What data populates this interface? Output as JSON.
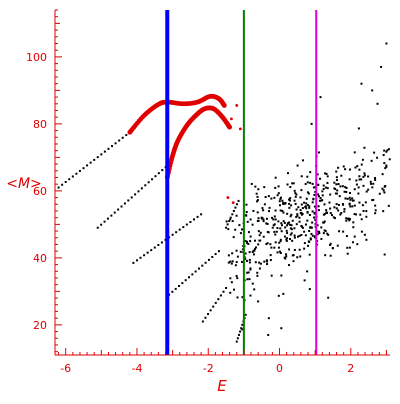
{
  "chart_data": {
    "type": "scatter",
    "xlabel": "E",
    "ylabel": "<M>",
    "xlim": [
      -6.3,
      3.1
    ],
    "ylim": [
      11,
      114
    ],
    "x_ticks": [
      -6,
      -4,
      -2,
      0,
      2
    ],
    "y_ticks": [
      20,
      40,
      60,
      80,
      100
    ],
    "grid": false,
    "colors": {
      "axis": "#e00000",
      "series_black": "#000000",
      "series_red": "#e00000",
      "line_blue": "#0000ff",
      "line_green": "#008000",
      "line_magenta": "#e000e0"
    },
    "vertical_lines": [
      {
        "x": -3.15,
        "color": "#0000ff",
        "width": "thick"
      },
      {
        "x": -1.0,
        "color": "#008000",
        "width": "thin"
      },
      {
        "x": 1.03,
        "color": "#e000e0",
        "width": "thin"
      }
    ],
    "series": [
      {
        "color": "#000000",
        "marker": "small-dot",
        "segments": [
          {
            "x0": -6.2,
            "y0": 61,
            "x1": -4.2,
            "y1": 77.5
          },
          {
            "x0": -5.1,
            "y0": 49,
            "x1": -3.1,
            "y1": 68
          },
          {
            "x0": -4.1,
            "y0": 38.5,
            "x1": -2.2,
            "y1": 53
          },
          {
            "x0": -3.1,
            "y0": 29,
            "x1": -1.7,
            "y1": 42
          },
          {
            "x0": -2.15,
            "y0": 21,
            "x1": -1.5,
            "y1": 31
          },
          {
            "x0": -1.2,
            "y0": 15,
            "x1": -0.95,
            "y1": 23
          },
          {
            "x0": -1.5,
            "y0": 49,
            "x1": -1.15,
            "y1": 57
          }
        ],
        "cloud": {
          "count": 520,
          "x_center": 0.6,
          "x_spread": 1.6,
          "y_base": 51,
          "y_slope": 4.2,
          "y_spread": 7.5,
          "x_min": -1.5,
          "x_max": 3.1
        },
        "extra_points": [
          {
            "x": 3.0,
            "y": 104
          },
          {
            "x": 2.85,
            "y": 97
          },
          {
            "x": 2.6,
            "y": 90
          },
          {
            "x": 2.3,
            "y": 92
          },
          {
            "x": 2.75,
            "y": 86
          },
          {
            "x": 1.15,
            "y": 88
          },
          {
            "x": 0.9,
            "y": 80
          },
          {
            "x": -0.3,
            "y": 22
          },
          {
            "x": 0.05,
            "y": 19
          },
          {
            "x": -0.6,
            "y": 27
          },
          {
            "x": 1.9,
            "y": 43
          },
          {
            "x": 2.95,
            "y": 41
          }
        ]
      },
      {
        "color": "#e00000",
        "marker": "large-dot",
        "arcs": [
          {
            "points": [
              [
                -4.2,
                77.5
              ],
              [
                -3.8,
                82.5
              ],
              [
                -3.4,
                85.8
              ],
              [
                -3.15,
                86.5
              ],
              [
                -2.7,
                86.0
              ],
              [
                -2.3,
                86.5
              ],
              [
                -1.95,
                88.2
              ],
              [
                -1.7,
                87.5
              ],
              [
                -1.55,
                85.5
              ]
            ]
          },
          {
            "points": [
              [
                -3.15,
                64.0
              ],
              [
                -3.0,
                70.5
              ],
              [
                -2.85,
                75.0
              ],
              [
                -2.6,
                79.5
              ],
              [
                -2.35,
                82.5
              ],
              [
                -2.1,
                84.5
              ],
              [
                -1.85,
                84.5
              ],
              [
                -1.6,
                82.0
              ],
              [
                -1.4,
                79.0
              ]
            ]
          }
        ],
        "extra_points": [
          {
            "x": -1.35,
            "y": 81.5
          },
          {
            "x": -1.2,
            "y": 85.5
          },
          {
            "x": -1.1,
            "y": 78.5
          },
          {
            "x": -1.45,
            "y": 58.0
          },
          {
            "x": -1.3,
            "y": 56.5
          }
        ]
      }
    ]
  }
}
